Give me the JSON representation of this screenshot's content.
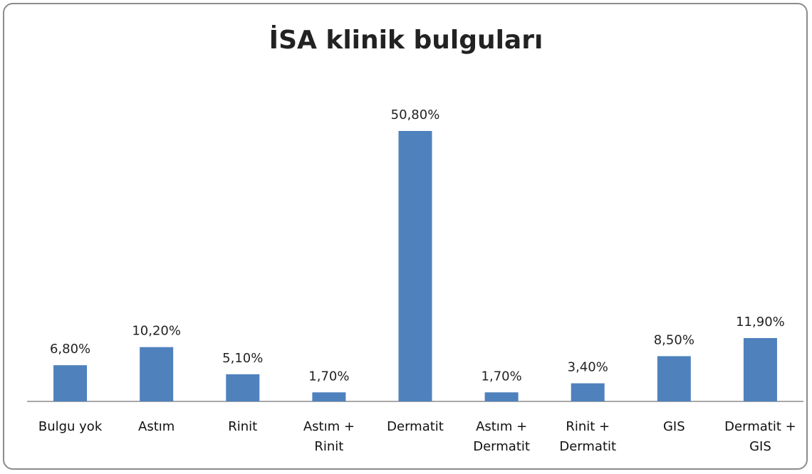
{
  "chart_data": {
    "type": "bar",
    "title": "İSA klinik bulguları",
    "categories": [
      "Bulgu yok",
      "Astım",
      "Rinit",
      "Astım + Rinit",
      "Dermatit",
      "Astım + Dermatit",
      "Rinit + Dermatit",
      "GIS",
      "Dermatit + GIS"
    ],
    "values": [
      6.8,
      10.2,
      5.1,
      1.7,
      50.8,
      1.7,
      3.4,
      8.5,
      11.9
    ],
    "value_labels": [
      "6,80%",
      "10,20%",
      "5,10%",
      "1,70%",
      "50,80%",
      "1,70%",
      "3,40%",
      "8,50%",
      "11,90%"
    ],
    "color": "#4f81bd"
  }
}
